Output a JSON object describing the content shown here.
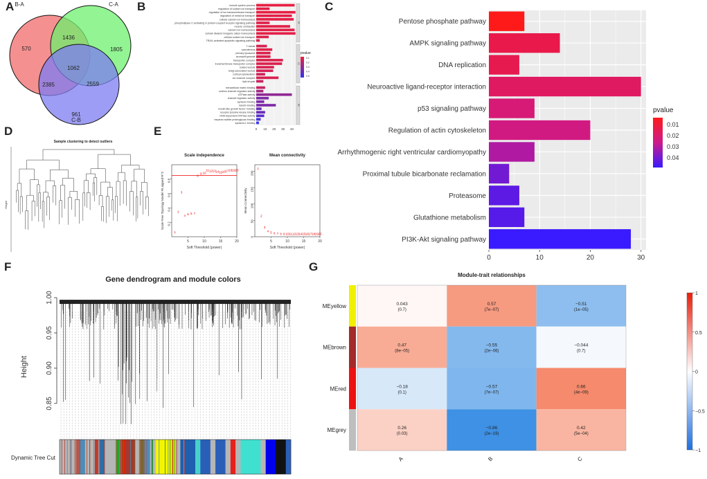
{
  "panel_labels": [
    "A",
    "B",
    "C",
    "D",
    "E",
    "F",
    "G"
  ],
  "colors": {
    "venn_a": "#f26b6b",
    "venn_b": "#6ef06e",
    "venn_c": "#7c7cf2",
    "bar_red": "#e8203a",
    "bar_blue": "#2a2af0",
    "grid": "#ebebeb",
    "panel_bg": "#ffffff"
  },
  "chart_data": [
    {
      "id": "A",
      "type": "venn",
      "sets": [
        "B-A",
        "C-A",
        "C-B"
      ],
      "regions": [
        {
          "sets": [
            "B-A"
          ],
          "value": 570
        },
        {
          "sets": [
            "C-A"
          ],
          "value": 1805
        },
        {
          "sets": [
            "C-B"
          ],
          "value": 961
        },
        {
          "sets": [
            "B-A",
            "C-A"
          ],
          "value": 1436
        },
        {
          "sets": [
            "B-A",
            "C-B"
          ],
          "value": 2385
        },
        {
          "sets": [
            "C-A",
            "C-B"
          ],
          "value": 2559
        },
        {
          "sets": [
            "B-A",
            "C-A",
            "C-B"
          ],
          "value": 1062
        }
      ]
    },
    {
      "id": "B",
      "type": "bar",
      "orientation": "horizontal",
      "legend_title": "pvalue",
      "legend_ticks": [
        "0.1",
        "0.2",
        "0.3",
        "0.4",
        "0.5"
      ],
      "xlim": [
        0,
        45
      ],
      "xticks": [
        0,
        10,
        20,
        30,
        40
      ],
      "groups": [
        {
          "name": "BP",
          "terms": [
            {
              "label": "muscle system process",
              "value": 43,
              "pvalue": 0.02
            },
            {
              "label": "regulation of sodium ion transport",
              "value": 15,
              "pvalue": 0.03
            },
            {
              "label": "regulation of ion transmembrane transport",
              "value": 44,
              "pvalue": 0.02
            },
            {
              "label": "regulation of metal ion transport",
              "value": 40,
              "pvalue": 0.03
            },
            {
              "label": "cellular calcium ion homeostasis",
              "value": 42,
              "pvalue": 0.03
            },
            {
              "label": "phospholipase C-activating G protein-coupled receptor signaling pathway",
              "value": 15,
              "pvalue": 0.04
            },
            {
              "label": "muscle contraction",
              "value": 38,
              "pvalue": 0.03
            },
            {
              "label": "calcium ion homeostasis",
              "value": 43,
              "pvalue": 0.03
            },
            {
              "label": "cellular divalent inorganic cation homeostasis",
              "value": 44,
              "pvalue": 0.03
            },
            {
              "label": "cellular sodium ion transport",
              "value": 14,
              "pvalue": 0.04
            },
            {
              "label": "TRAIL-activated apoptotic signaling pathway",
              "value": 4,
              "pvalue": 0.05
            }
          ]
        },
        {
          "name": "CC",
          "terms": [
            {
              "label": "T-tubule",
              "value": 12,
              "pvalue": 0.06
            },
            {
              "label": "sarcolemma",
              "value": 18,
              "pvalue": 0.04
            },
            {
              "label": "primary lysosome",
              "value": 16,
              "pvalue": 0.05
            },
            {
              "label": "azurophil granule",
              "value": 16,
              "pvalue": 0.05
            },
            {
              "label": "transporter complex",
              "value": 30,
              "pvalue": 0.05
            },
            {
              "label": "transmembrane transporter complex",
              "value": 29,
              "pvalue": 0.05
            },
            {
              "label": "coated vesicle",
              "value": 20,
              "pvalue": 0.06
            },
            {
              "label": "Golgi-associated vesicle",
              "value": 19,
              "pvalue": 0.07
            },
            {
              "label": "cortical cytoskeleton",
              "value": 10,
              "pvalue": 0.08
            },
            {
              "label": "ion channel complex",
              "value": 25,
              "pvalue": 0.06
            },
            {
              "label": "lipid droplet",
              "value": 8,
              "pvalue": 0.1
            }
          ]
        },
        {
          "name": "MF",
          "terms": [
            {
              "label": "extracellular matrix binding",
              "value": 10,
              "pvalue": 0.1
            },
            {
              "label": "sodium channel regulator activity",
              "value": 8,
              "pvalue": 0.2
            },
            {
              "label": "ATPase activity",
              "value": 40,
              "pvalue": 0.25
            },
            {
              "label": "channel regulator activity",
              "value": 14,
              "pvalue": 0.3
            },
            {
              "label": "syntaxin binding",
              "value": 9,
              "pvalue": 0.3
            },
            {
              "label": "tubulin binding",
              "value": 22,
              "pvalue": 0.3
            },
            {
              "label": "insulin-like growth factor I binding",
              "value": 6,
              "pvalue": 0.35
            },
            {
              "label": "receptor tyrosine kinase binding",
              "value": 10,
              "pvalue": 0.35
            },
            {
              "label": "DNA-dependent ATPase activity",
              "value": 9,
              "pvalue": 0.4
            },
            {
              "label": "heparan sulfate proteoglycan binding",
              "value": 5,
              "pvalue": 0.45
            },
            {
              "label": "syntaxin-1 binding",
              "value": 3,
              "pvalue": 0.5
            }
          ]
        }
      ]
    },
    {
      "id": "C",
      "type": "bar",
      "orientation": "horizontal",
      "legend_title": "pvalue",
      "legend_ticks": [
        "0.01",
        "0.02",
        "0.03",
        "0.04"
      ],
      "xlim": [
        0,
        31
      ],
      "xticks": [
        0,
        10,
        20,
        30
      ],
      "categories": [
        "Pentose phosphate pathway",
        "AMPK signaling pathway",
        "DNA replication",
        "Neuroactive ligand-receptor interaction",
        "p53 signaling pathway",
        "Regulation of actin cytoskeleton",
        "Arrhythmogenic right ventricular cardiomyopathy",
        "Proximal tubule bicarbonate reclamation",
        "Proteasome",
        "Glutathione metabolism",
        "PI3K-Akt signaling pathway"
      ],
      "values": [
        7,
        14,
        6,
        30,
        9,
        20,
        9,
        4,
        6,
        7,
        28
      ],
      "pvalues": [
        0.003,
        0.012,
        0.013,
        0.016,
        0.02,
        0.022,
        0.028,
        0.037,
        0.04,
        0.041,
        0.045
      ]
    },
    {
      "id": "D",
      "type": "dendrogram",
      "title": "Sample clustering to detect outliers",
      "ylabel": "Height"
    },
    {
      "id": "E1",
      "type": "scatter",
      "title": "Scale independence",
      "xlabel": "Soft Threshold (power)",
      "ylabel": "Scale Free Topology Model Fit,signed R^2",
      "xlim": [
        0,
        20
      ],
      "ylim": [
        0,
        1.0
      ],
      "xticks": [
        5,
        10,
        15,
        20
      ],
      "yticks": [
        0.2,
        0.4,
        0.6,
        0.8
      ],
      "hline": 0.85,
      "points": [
        {
          "x": 1,
          "y": 0.05,
          "label": "1"
        },
        {
          "x": 2,
          "y": 0.33,
          "label": "2"
        },
        {
          "x": 3,
          "y": 0.6,
          "label": "3"
        },
        {
          "x": 4,
          "y": 0.28,
          "label": "4"
        },
        {
          "x": 5,
          "y": 0.3,
          "label": "5"
        },
        {
          "x": 6,
          "y": 0.31,
          "label": "6"
        },
        {
          "x": 7,
          "y": 0.31,
          "label": "7"
        },
        {
          "x": 8,
          "y": 0.83,
          "label": "8"
        },
        {
          "x": 9,
          "y": 0.86,
          "label": "9"
        },
        {
          "x": 10,
          "y": 0.87,
          "label": "10"
        },
        {
          "x": 11,
          "y": 0.91,
          "label": "11"
        },
        {
          "x": 12,
          "y": 0.9,
          "label": "12"
        },
        {
          "x": 13,
          "y": 0.9,
          "label": "13"
        },
        {
          "x": 14,
          "y": 0.89,
          "label": "14"
        },
        {
          "x": 15,
          "y": 0.88,
          "label": "15"
        },
        {
          "x": 16,
          "y": 0.89,
          "label": "16"
        },
        {
          "x": 17,
          "y": 0.9,
          "label": "17"
        },
        {
          "x": 18,
          "y": 0.91,
          "label": "18"
        },
        {
          "x": 19,
          "y": 0.91,
          "label": "19"
        },
        {
          "x": 20,
          "y": 0.91,
          "label": "20"
        }
      ]
    },
    {
      "id": "E2",
      "type": "scatter",
      "title": "Mean connectivity",
      "xlabel": "Soft Threshold (power)",
      "ylabel": "Mean Connectivity",
      "xlim": [
        0,
        20
      ],
      "ylim": [
        0,
        220
      ],
      "xticks": [
        5,
        10,
        15,
        20
      ],
      "yticks": [
        0,
        50,
        100,
        150,
        200
      ],
      "points": [
        {
          "x": 1,
          "y": 205,
          "label": "1"
        },
        {
          "x": 2,
          "y": 60,
          "label": "2"
        },
        {
          "x": 3,
          "y": 25,
          "label": "3"
        },
        {
          "x": 4,
          "y": 14,
          "label": "4"
        },
        {
          "x": 5,
          "y": 9,
          "label": "5"
        },
        {
          "x": 6,
          "y": 7,
          "label": "6"
        },
        {
          "x": 7,
          "y": 6,
          "label": "7"
        },
        {
          "x": 8,
          "y": 5,
          "label": "8"
        },
        {
          "x": 9,
          "y": 5,
          "label": "9"
        },
        {
          "x": 10,
          "y": 5,
          "label": "10"
        },
        {
          "x": 11,
          "y": 5,
          "label": "11"
        },
        {
          "x": 12,
          "y": 5,
          "label": "12"
        },
        {
          "x": 13,
          "y": 5,
          "label": "13"
        },
        {
          "x": 14,
          "y": 5,
          "label": "14"
        },
        {
          "x": 15,
          "y": 5,
          "label": "15"
        },
        {
          "x": 16,
          "y": 5,
          "label": "16"
        },
        {
          "x": 17,
          "y": 5,
          "label": "17"
        },
        {
          "x": 18,
          "y": 5,
          "label": "18"
        },
        {
          "x": 19,
          "y": 5,
          "label": "19"
        },
        {
          "x": 20,
          "y": 5,
          "label": "20"
        }
      ]
    },
    {
      "id": "F",
      "type": "dendrogram",
      "title": "Gene dendrogram and module colors",
      "ylabel": "Height",
      "ylim": [
        0.8,
        1.0
      ],
      "yticks": [
        "0.85",
        "0.90",
        "0.95",
        "1.00"
      ],
      "color_bar_label": "Dynamic Tree Cut",
      "color_segments": [
        {
          "color": "#b6b6b6",
          "w": 3
        },
        {
          "color": "#b5574e",
          "w": 1
        },
        {
          "color": "#4b8db8",
          "w": 1
        },
        {
          "color": "#b6b6b6",
          "w": 2
        },
        {
          "color": "#c03a2c",
          "w": 1
        },
        {
          "color": "#2c6fa8",
          "w": 1
        },
        {
          "color": "#b6b6b6",
          "w": 2
        },
        {
          "color": "#1dbf1d",
          "w": 1
        },
        {
          "color": "#e8200a",
          "w": 1
        },
        {
          "color": "#a33a2e",
          "w": 2
        },
        {
          "color": "#b6b6b6",
          "w": 1
        },
        {
          "color": "#c04a3e",
          "w": 1
        },
        {
          "color": "#4a8fc0",
          "w": 1
        },
        {
          "color": "#b6b6b6",
          "w": 1
        },
        {
          "color": "#f5f500",
          "w": 4
        },
        {
          "color": "#b6b6b6",
          "w": 1
        },
        {
          "color": "#1e5fb0",
          "w": 3
        },
        {
          "color": "#48d1cc",
          "w": 1
        },
        {
          "color": "#2a5fb8",
          "w": 2
        },
        {
          "color": "#b6b6b6",
          "w": 1
        },
        {
          "color": "#2a5fb8",
          "w": 2
        },
        {
          "color": "#b6b6b6",
          "w": 1
        },
        {
          "color": "#e8201a",
          "w": 1
        },
        {
          "color": "#b6b6b6",
          "w": 1
        },
        {
          "color": "#40e0d0",
          "w": 4
        },
        {
          "color": "#b6b6b6",
          "w": 1
        },
        {
          "color": "#0000ee",
          "w": 2
        },
        {
          "color": "#111111",
          "w": 2
        },
        {
          "color": "#2a5fb8",
          "w": 1
        }
      ]
    },
    {
      "id": "G",
      "type": "heatmap",
      "title": "Module-trait relationships",
      "rows": [
        "MEyellow",
        "MEbrown",
        "MEred",
        "MEgrey"
      ],
      "row_colors": [
        "#f0f000",
        "#a52a2a",
        "#ee1111",
        "#bebebe"
      ],
      "cols": [
        "A",
        "B",
        "C"
      ],
      "values": [
        [
          0.043,
          0.57,
          -0.51
        ],
        [
          0.47,
          -0.55,
          -0.044
        ],
        [
          -0.18,
          -0.57,
          0.66
        ],
        [
          0.26,
          -0.86,
          0.42
        ]
      ],
      "labels": [
        [
          "0.043",
          "0.57",
          "−0.51"
        ],
        [
          "0.47",
          "−0.55",
          "−0.044"
        ],
        [
          "−0.18",
          "−0.57",
          "0.66"
        ],
        [
          "0.26",
          "−0.86",
          "0.42"
        ]
      ],
      "pvalues": [
        [
          "(0.7)",
          "(7e−07)",
          "(1e−05)"
        ],
        [
          "(8e−05)",
          "(2e−06)",
          "(0.7)"
        ],
        [
          "(0.1)",
          "(7e−07)",
          "(4e−09)"
        ],
        [
          "(0.03)",
          "(2e−19)",
          "(5e−04)"
        ]
      ],
      "legend_ticks": [
        "1",
        "0.5",
        "0",
        "−0.5",
        "−1"
      ]
    }
  ]
}
